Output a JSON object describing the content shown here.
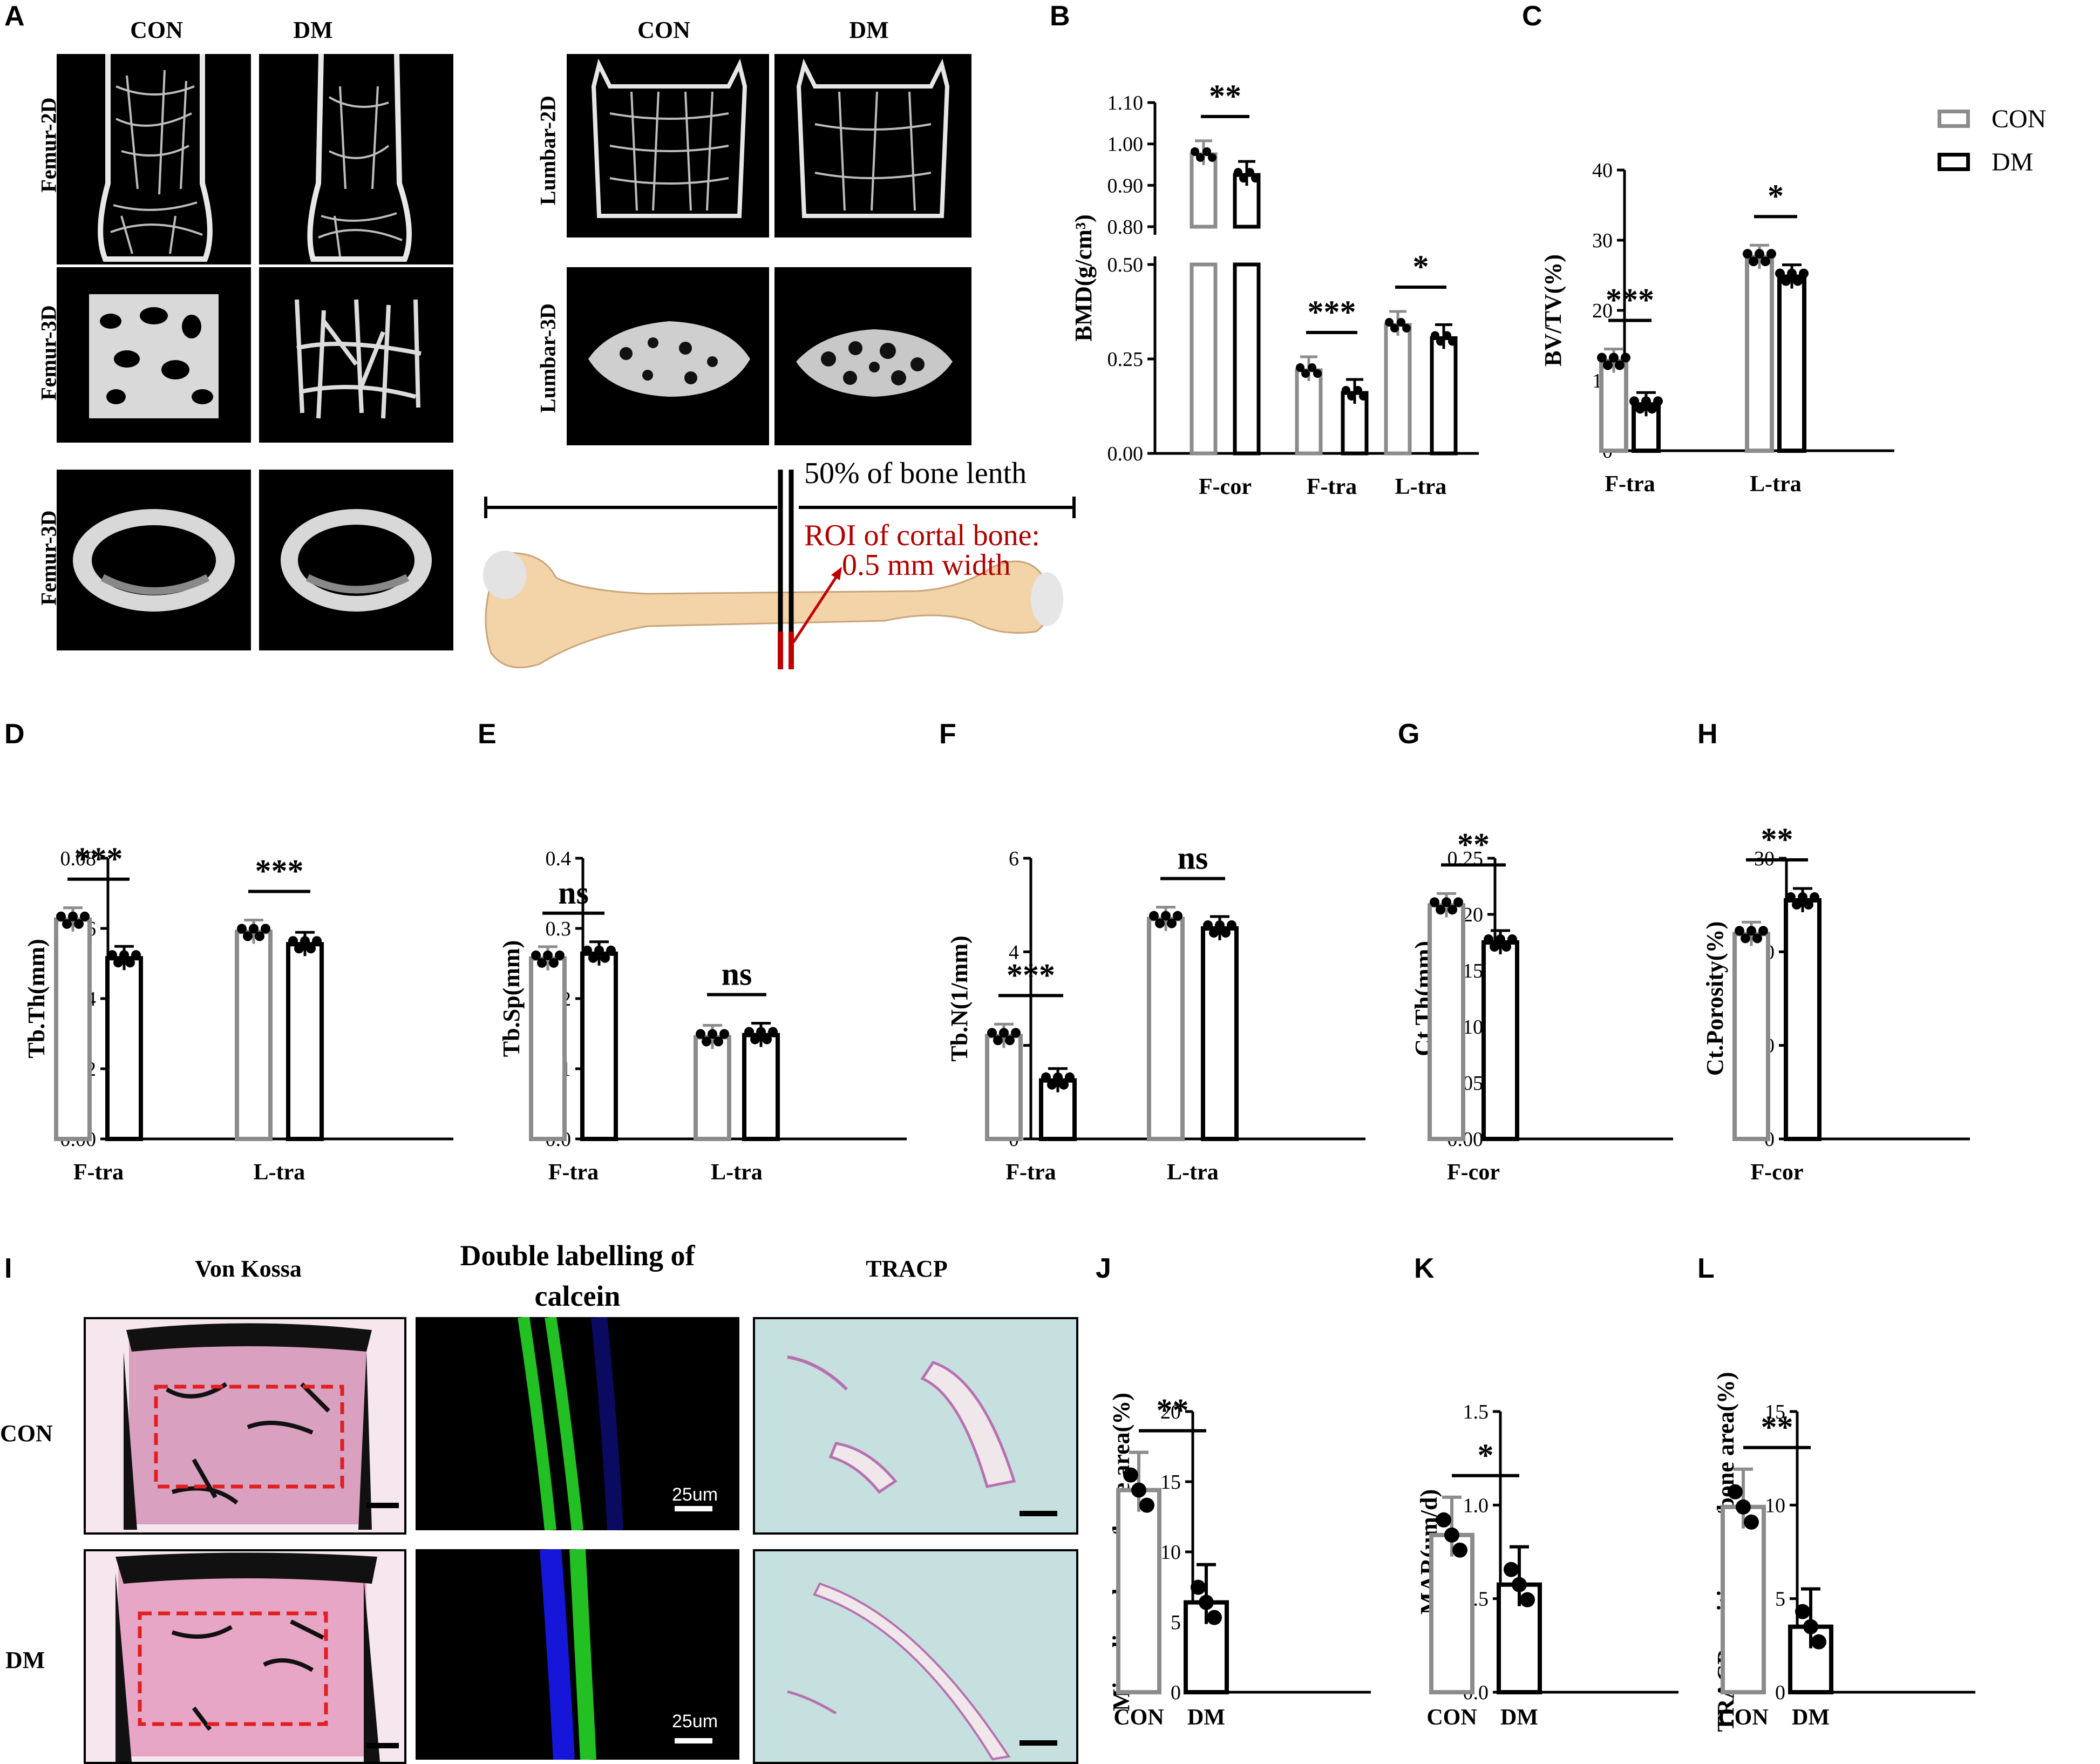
{
  "panel_letters": {
    "A": "A",
    "B": "B",
    "C": "C",
    "D": "D",
    "E": "E",
    "F": "F",
    "G": "G",
    "H": "H",
    "I": "I",
    "J": "J",
    "K": "K",
    "L": "L"
  },
  "panelA": {
    "col_headers": [
      "CON",
      "DM",
      "CON",
      "DM"
    ],
    "row_labels": [
      "Femur-2D",
      "Femur-3D",
      "Femur-3D",
      "Lumbar-2D",
      "Lumbar-3D"
    ],
    "bone_schematic": {
      "length_label": "50% of bone lenth",
      "roi_label_1": "ROI of cortal bone:",
      "roi_label_2": "0.5 mm width",
      "roi_color": "#c00000",
      "bone_color": "#f3d3a8"
    }
  },
  "panelI": {
    "col_headers": [
      "Von Kossa",
      "Double labelling of",
      "calcein",
      "TRACP"
    ],
    "row_labels": [
      "CON",
      "DM"
    ],
    "scalebars": [
      "25um",
      "25um"
    ]
  },
  "legend": {
    "items": [
      "CON",
      "DM"
    ],
    "colors": [
      "#8c8c8c",
      "#000000"
    ]
  },
  "colors": {
    "con": "#8c8c8c",
    "dm": "#000000",
    "roi_box": "#e02020",
    "calcein": "#22c022",
    "dapi": "#1a1aff",
    "von_kossa_tissue": "#e8a6c6",
    "tracp_bg": "#b8d8d8"
  },
  "chart_data": [
    {
      "id": "B",
      "type": "bar",
      "xlabel": "",
      "ylabel": "BMD(g/cm³)",
      "categories": [
        "F-cor",
        "F-tra",
        "L-tra"
      ],
      "series": [
        {
          "name": "CON",
          "values": [
            0.975,
            0.22,
            0.34
          ]
        },
        {
          "name": "DM",
          "values": [
            0.925,
            0.16,
            0.305
          ]
        }
      ],
      "axis_break": [
        0.5,
        0.8
      ],
      "yticks": [
        "0.00",
        "0.25",
        "0.50",
        "0.80",
        "0.90",
        "1.00",
        "1.10"
      ],
      "significance": [
        "**",
        "***",
        "*"
      ]
    },
    {
      "id": "C",
      "type": "bar",
      "xlabel": "",
      "ylabel": "BV/TV(%)",
      "categories": [
        "F-tra",
        "L-tra"
      ],
      "series": [
        {
          "name": "CON",
          "values": [
            12.8,
            27.6
          ]
        },
        {
          "name": "DM",
          "values": [
            6.6,
            24.8
          ]
        }
      ],
      "ylim": [
        0,
        40
      ],
      "yticks": [
        "0",
        "10",
        "20",
        "30",
        "40"
      ],
      "significance": [
        "***",
        "*"
      ]
    },
    {
      "id": "D",
      "type": "bar",
      "xlabel": "",
      "ylabel": "Tb.Th(mm)",
      "categories": [
        "F-tra",
        "L-tra"
      ],
      "series": [
        {
          "name": "CON",
          "values": [
            0.0625,
            0.059
          ]
        },
        {
          "name": "DM",
          "values": [
            0.0515,
            0.0555
          ]
        }
      ],
      "ylim": [
        0,
        0.08
      ],
      "yticks": [
        "0.00",
        "0.02",
        "0.04",
        "0.06",
        "0.08"
      ],
      "significance": [
        "***",
        "***"
      ]
    },
    {
      "id": "E",
      "type": "bar",
      "xlabel": "",
      "ylabel": "Tb.Sp(mm)",
      "categories": [
        "F-tra",
        "L-tra"
      ],
      "series": [
        {
          "name": "CON",
          "values": [
            0.257,
            0.145
          ]
        },
        {
          "name": "DM",
          "values": [
            0.264,
            0.148
          ]
        }
      ],
      "ylim": [
        0,
        0.4
      ],
      "yticks": [
        "0.0",
        "0.1",
        "0.2",
        "0.3",
        "0.4"
      ],
      "significance": [
        "ns",
        "ns"
      ]
    },
    {
      "id": "F",
      "type": "bar",
      "xlabel": "",
      "ylabel": "Tb.N(1/mm)",
      "categories": [
        "F-tra",
        "L-tra"
      ],
      "series": [
        {
          "name": "CON",
          "values": [
            2.2,
            4.7
          ]
        },
        {
          "name": "DM",
          "values": [
            1.25,
            4.5
          ]
        }
      ],
      "ylim": [
        0,
        6
      ],
      "yticks": [
        "0",
        "2",
        "4",
        "6"
      ],
      "significance": [
        "***",
        "ns"
      ]
    },
    {
      "id": "G",
      "type": "bar",
      "xlabel": "",
      "ylabel": "Ct.Th(mm)",
      "categories": [
        "F-cor"
      ],
      "series": [
        {
          "name": "CON",
          "values": [
            0.208
          ]
        },
        {
          "name": "DM",
          "values": [
            0.175
          ]
        }
      ],
      "ylim": [
        0,
        0.25
      ],
      "yticks": [
        "0.00",
        "0.05",
        "0.10",
        "0.15",
        "0.20",
        "0.25"
      ],
      "significance": [
        "**"
      ]
    },
    {
      "id": "H",
      "type": "bar",
      "xlabel": "",
      "ylabel": "Ct.Porosity(%)",
      "categories": [
        "F-cor"
      ],
      "series": [
        {
          "name": "CON",
          "values": [
            21.9
          ]
        },
        {
          "name": "DM",
          "values": [
            25.5
          ]
        }
      ],
      "ylim": [
        0,
        30
      ],
      "yticks": [
        "0",
        "10",
        "20",
        "30"
      ],
      "significance": [
        "**"
      ]
    },
    {
      "id": "J",
      "type": "bar",
      "xlabel": "",
      "ylabel": "Minerliazed area/bone area(%)",
      "categories": [
        "CON",
        "DM"
      ],
      "values": [
        14.4,
        6.4
      ],
      "ylim": [
        0,
        20
      ],
      "yticks": [
        "0",
        "5",
        "10",
        "15",
        "20"
      ],
      "significance": [
        "**"
      ]
    },
    {
      "id": "K",
      "type": "bar",
      "xlabel": "",
      "ylabel": "MAR(um/d)",
      "categories": [
        "CON",
        "DM"
      ],
      "values": [
        0.84,
        0.575
      ],
      "ylim": [
        0,
        1.5
      ],
      "yticks": [
        "0.0",
        "0.5",
        "1.0",
        "1.5"
      ],
      "significance": [
        "*"
      ]
    },
    {
      "id": "L",
      "type": "bar",
      "xlabel": "",
      "ylabel": "TRACP positive area/bone area(%)",
      "categories": [
        "CON",
        "DM"
      ],
      "values": [
        9.9,
        3.5
      ],
      "ylim": [
        0,
        15
      ],
      "yticks": [
        "0",
        "5",
        "10",
        "15"
      ],
      "significance": [
        "**"
      ]
    }
  ]
}
